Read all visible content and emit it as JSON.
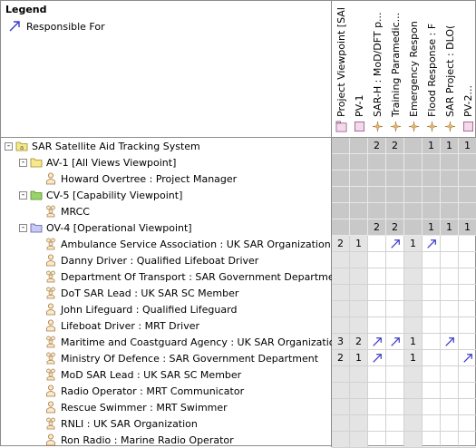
{
  "legend": {
    "title": "Legend",
    "items": [
      {
        "label": "Responsible For",
        "icon": "diagonal-arrow-icon",
        "color": "#3a3acb"
      }
    ]
  },
  "columns": [
    {
      "label": "Project Viewpoint [SAR",
      "icon": "package-icon"
    },
    {
      "label": "PV-1",
      "icon": "pink-box-icon"
    },
    {
      "label": "SAR-H : MoD/DFT p...",
      "icon": "sparkle-icon"
    },
    {
      "label": "Training Paramedic...",
      "icon": "sparkle-icon"
    },
    {
      "label": "Emergency Respon",
      "icon": "sparkle-icon"
    },
    {
      "label": "Flood Response : F",
      "icon": "sparkle-icon"
    },
    {
      "label": "SAR Project : DLO(",
      "icon": "sparkle-icon"
    },
    {
      "label": "PV-2...",
      "icon": "pink-box-icon"
    }
  ],
  "rows": [
    {
      "label": "SAR Satellite Aid Tracking System",
      "icon": "system-icon",
      "expand": "-",
      "cells": [
        "",
        "",
        "2",
        "2",
        "",
        "1",
        "1",
        "1"
      ],
      "shaded": true
    },
    {
      "label": "AV-1 [All Views Viewpoint]",
      "icon": "folder-yellow-icon",
      "expand": "-",
      "cells": [
        "",
        "",
        "",
        "",
        "",
        "",
        "",
        ""
      ],
      "shaded": true
    },
    {
      "label": "Howard Overtree : Project Manager",
      "icon": "person-icon",
      "cells": [
        "",
        "",
        "",
        "",
        "",
        "",
        "",
        ""
      ],
      "shaded": true
    },
    {
      "label": "CV-5 [Capability Viewpoint]",
      "icon": "folder-green-icon",
      "expand": "-",
      "cells": [
        "",
        "",
        "",
        "",
        "",
        "",
        "",
        ""
      ],
      "shaded": true
    },
    {
      "label": "MRCC",
      "icon": "org-icon",
      "cells": [
        "",
        "",
        "",
        "",
        "",
        "",
        "",
        ""
      ],
      "shaded": true
    },
    {
      "label": "OV-4 [Operational Viewpoint]",
      "icon": "folder-blue-icon",
      "expand": "-",
      "cells": [
        "",
        "",
        "2",
        "2",
        "",
        "1",
        "1",
        "1"
      ],
      "shaded": true
    },
    {
      "label": "Ambulance Service Association : UK SAR Organization",
      "icon": "org-icon",
      "cells": [
        "2",
        "1",
        "",
        "arrow",
        "1",
        "arrow",
        "",
        ""
      ]
    },
    {
      "label": "Danny Driver : Qualified Lifeboat Driver",
      "icon": "person-icon",
      "cells": [
        "",
        "",
        "",
        "",
        "",
        "",
        "",
        ""
      ]
    },
    {
      "label": "Department Of Transport : SAR Government Department",
      "icon": "org-icon",
      "cells": [
        "",
        "",
        "",
        "",
        "",
        "",
        "",
        ""
      ]
    },
    {
      "label": "DoT SAR Lead : UK SAR SC Member",
      "icon": "org-icon",
      "cells": [
        "",
        "",
        "",
        "",
        "",
        "",
        "",
        ""
      ]
    },
    {
      "label": "John Lifeguard : Qualified Lifeguard",
      "icon": "person-icon",
      "cells": [
        "",
        "",
        "",
        "",
        "",
        "",
        "",
        ""
      ]
    },
    {
      "label": "Lifeboat Driver : MRT Driver",
      "icon": "person-icon",
      "cells": [
        "",
        "",
        "",
        "",
        "",
        "",
        "",
        ""
      ]
    },
    {
      "label": "Maritime and Coastguard Agency : UK SAR Organization",
      "icon": "org-icon",
      "cells": [
        "3",
        "2",
        "arrow",
        "arrow",
        "1",
        "",
        "arrow",
        ""
      ]
    },
    {
      "label": "Ministry Of Defence : SAR Government Department",
      "icon": "org-icon",
      "cells": [
        "2",
        "1",
        "arrow",
        "",
        "1",
        "",
        "",
        "arrow"
      ]
    },
    {
      "label": "MoD SAR Lead : UK SAR SC Member",
      "icon": "org-icon",
      "cells": [
        "",
        "",
        "",
        "",
        "",
        "",
        "",
        ""
      ]
    },
    {
      "label": "Radio Operator : MRT Communicator",
      "icon": "person-icon",
      "cells": [
        "",
        "",
        "",
        "",
        "",
        "",
        "",
        ""
      ]
    },
    {
      "label": "Rescue Swimmer : MRT Swimmer",
      "icon": "person-icon",
      "cells": [
        "",
        "",
        "",
        "",
        "",
        "",
        "",
        ""
      ]
    },
    {
      "label": "RNLI : UK SAR Organization",
      "icon": "org-icon",
      "cells": [
        "",
        "",
        "",
        "",
        "",
        "",
        "",
        ""
      ]
    },
    {
      "label": "Ron Radio : Marine Radio Operator",
      "icon": "person-icon",
      "cells": [
        "",
        "",
        "",
        "",
        "",
        "",
        "",
        ""
      ]
    }
  ]
}
